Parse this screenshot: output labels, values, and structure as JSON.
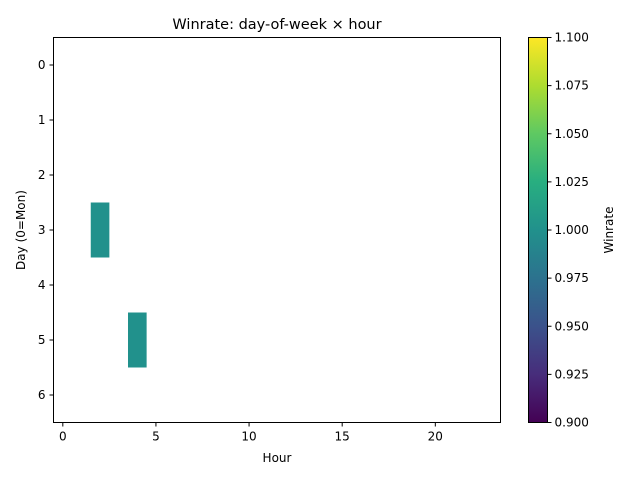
{
  "chart_data": {
    "type": "heatmap",
    "title": "Winrate: day-of-week × hour",
    "xlabel": "Hour",
    "ylabel": "Day (0=Mon)",
    "x_ticks": [
      "0",
      "5",
      "10",
      "15",
      "20"
    ],
    "y_ticks": [
      "0",
      "1",
      "2",
      "3",
      "4",
      "5",
      "6"
    ],
    "xlim": [
      -0.5,
      23.5
    ],
    "ylim": [
      -0.5,
      6.5
    ],
    "cells": [
      {
        "day": 3,
        "hour": 2,
        "value": 1.0
      },
      {
        "day": 5,
        "hour": 4,
        "value": 1.0
      }
    ],
    "colorbar": {
      "label": "Winrate",
      "colormap": "viridis",
      "range": [
        0.9,
        1.1
      ],
      "ticks": [
        "0.900",
        "0.925",
        "0.950",
        "0.975",
        "1.000",
        "1.025",
        "1.050",
        "1.075",
        "1.100"
      ]
    },
    "cell_color": "#21918c",
    "grid": false
  }
}
